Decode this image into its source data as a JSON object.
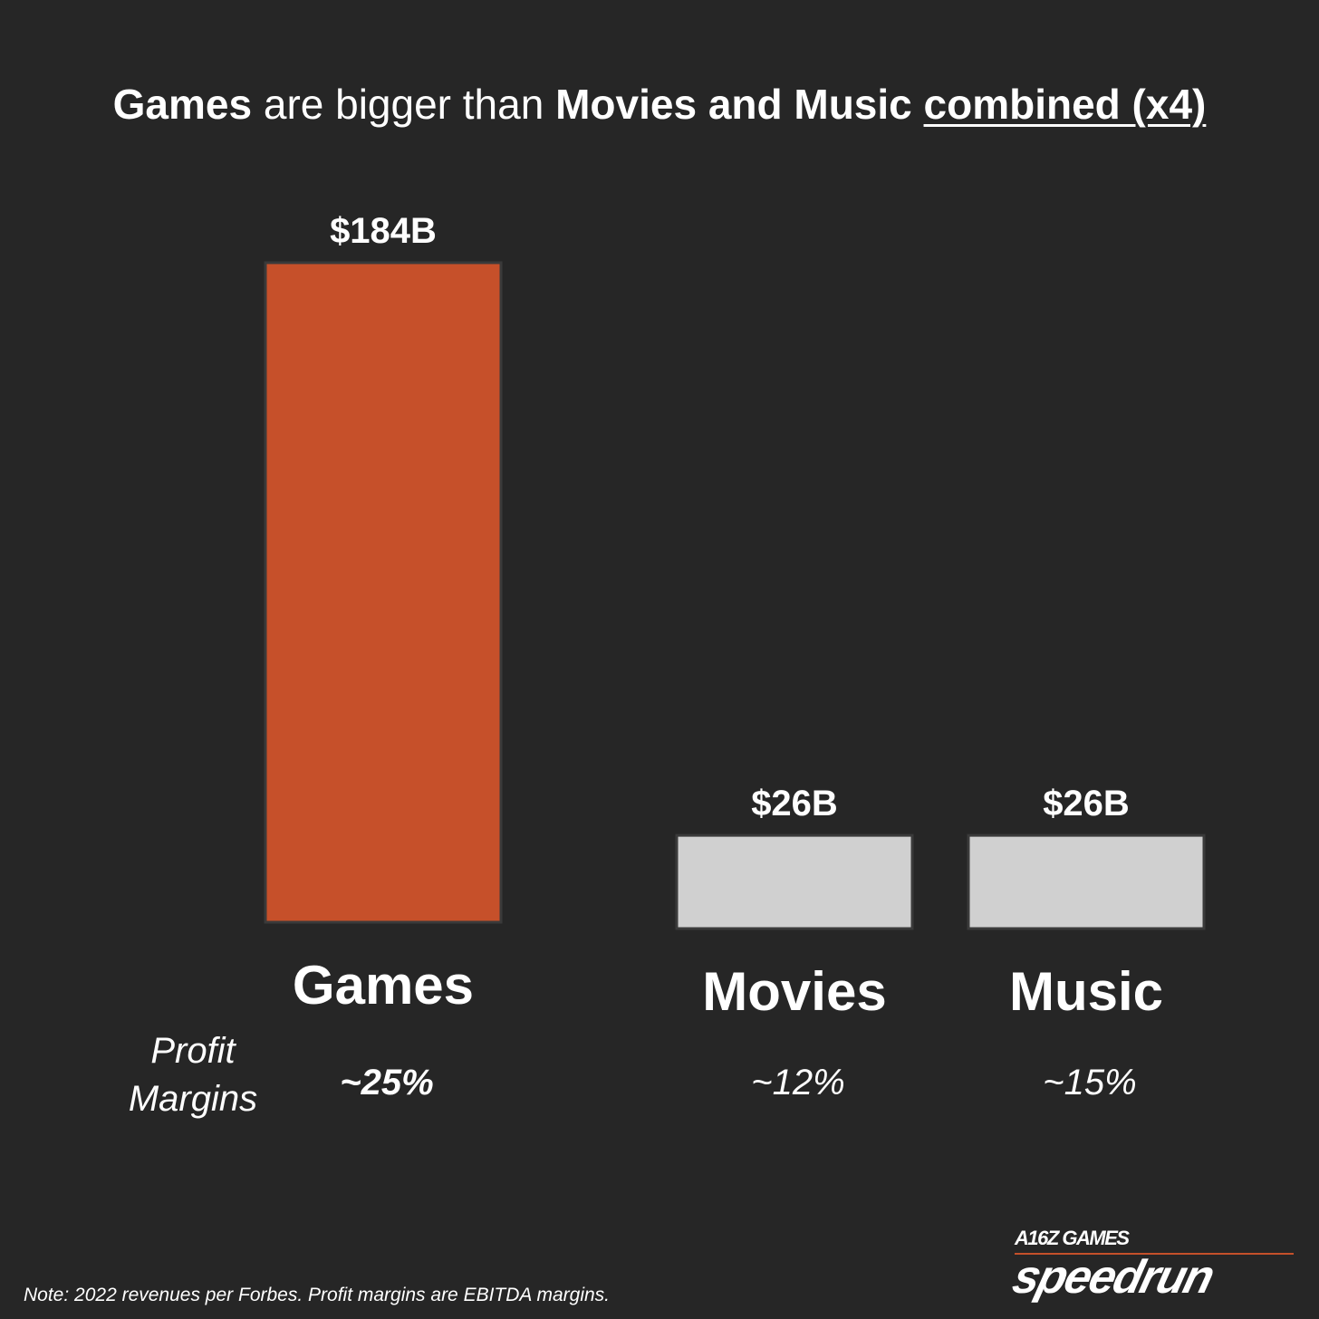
{
  "title": {
    "part1": "Games",
    "part2": " are bigger than ",
    "part3": "Movies and Music",
    "part4": " ",
    "part5": "combined (x4)"
  },
  "profit_margins_label": {
    "line1": "Profit",
    "line2": "Margins"
  },
  "note": "Note: 2022 revenues per Forbes. Profit margins are EBITDA margins.",
  "logo": {
    "top": "A16Z GAMES",
    "main": "speedrun"
  },
  "colors": {
    "background": "#262626",
    "games_bar": "#c6502a",
    "other_bars": "#d0d0d0"
  },
  "chart_data": {
    "type": "bar",
    "categories": [
      "Games",
      "Movies",
      "Music"
    ],
    "values": [
      184,
      26,
      26
    ],
    "unit": "B",
    "value_labels": [
      "$184B",
      "$26B",
      "$26B"
    ],
    "profit_margins": [
      "~25%",
      "~12%",
      "~15%"
    ],
    "colors": [
      "#c6502a",
      "#d0d0d0",
      "#d0d0d0"
    ],
    "axes": "none",
    "grid": false,
    "legend": "none"
  }
}
